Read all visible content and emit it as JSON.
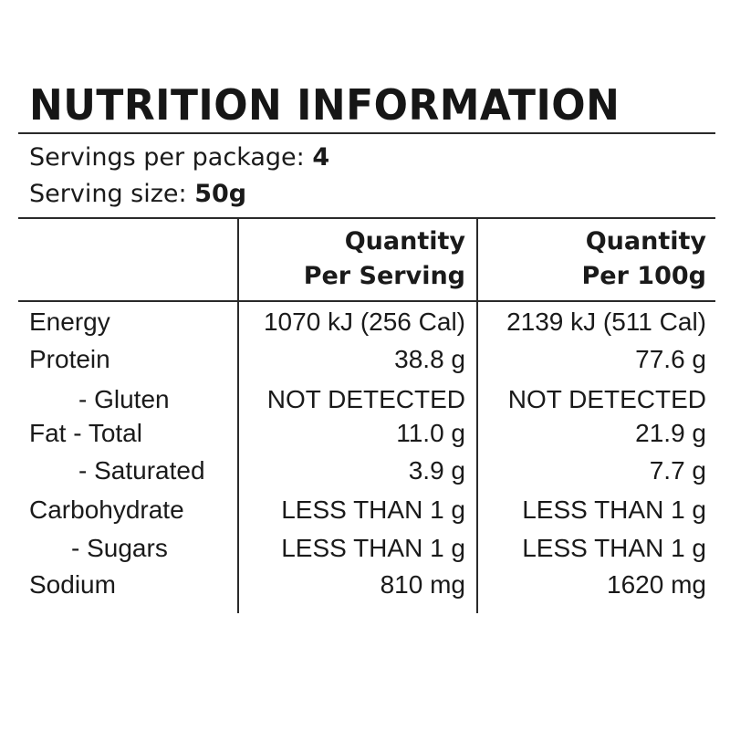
{
  "title": "NUTRITION INFORMATION",
  "servings": {
    "per_package_label": "Servings per package:",
    "per_package_value": "4",
    "size_label": "Serving size:",
    "size_value": "50g"
  },
  "columns": {
    "per_serving_line1": "Quantity",
    "per_serving_line2": "Per Serving",
    "per_100g_line1": "Quantity",
    "per_100g_line2": "Per 100g"
  },
  "rows": [
    {
      "label": "Energy",
      "per_serving": "1070 kJ (256 Cal)",
      "per_100g": "2139 kJ (511 Cal)"
    },
    {
      "label": "Protein",
      "per_serving": "38.8 g",
      "per_100g": "77.6 g"
    },
    {
      "label": "- Gluten",
      "per_serving": "NOT DETECTED",
      "per_100g": "NOT DETECTED"
    },
    {
      "label": "Fat - Total",
      "per_serving": "11.0 g",
      "per_100g": "21.9 g"
    },
    {
      "label": "- Saturated",
      "per_serving": "3.9 g",
      "per_100g": "7.7 g"
    },
    {
      "label": "Carbohydrate",
      "per_serving": "LESS THAN 1 g",
      "per_100g": "LESS THAN 1 g"
    },
    {
      "label": "- Sugars",
      "per_serving": "LESS THAN 1 g",
      "per_100g": "LESS THAN 1 g"
    },
    {
      "label": "Sodium",
      "per_serving": "810 mg",
      "per_100g": "1620 mg"
    }
  ]
}
